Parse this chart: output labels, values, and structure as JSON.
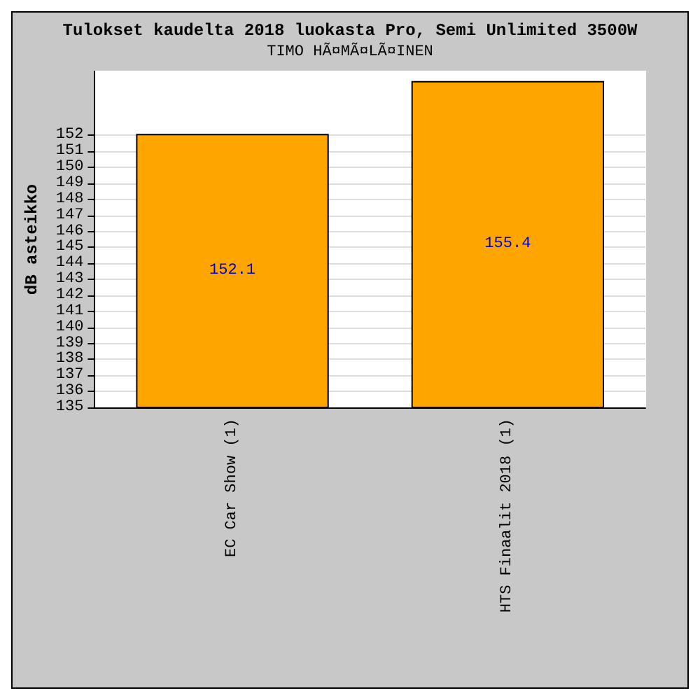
{
  "chart_data": {
    "type": "bar",
    "title": "Tulokset kaudelta 2018 luokasta Pro, Semi Unlimited 3500W",
    "subtitle": "TIMO HÃ¤MÃ¤LÃ¤INEN",
    "ylabel": "dB asteikko",
    "categories": [
      "EC Car Show (1)",
      "HTS Finaalit 2018 (1)"
    ],
    "values": [
      152.1,
      155.4
    ],
    "color": "#ffa500",
    "ylim": [
      135,
      156
    ],
    "yticks": [
      135,
      136,
      137,
      138,
      139,
      140,
      141,
      142,
      143,
      144,
      145,
      146,
      147,
      148,
      149,
      150,
      151,
      152
    ],
    "grid": "y",
    "data_labels": true
  }
}
